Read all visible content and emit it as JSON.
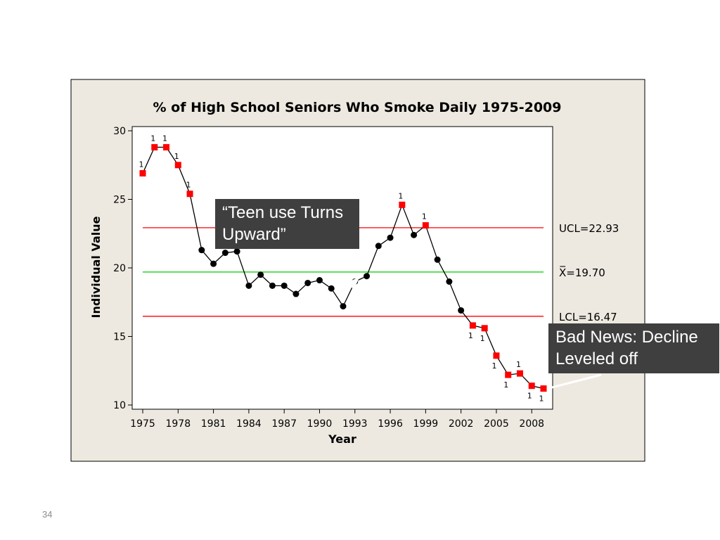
{
  "chart_data": {
    "type": "line",
    "chart_kind": "individuals control chart",
    "title": "% of High School Seniors Who Smoke Daily 1975-2009",
    "xlabel": "Year",
    "ylabel": "Individual Value",
    "xlim": [
      1975,
      2009
    ],
    "ylim": [
      10,
      30
    ],
    "x_ticks": [
      "1975",
      "1978",
      "1981",
      "1984",
      "1987",
      "1990",
      "1993",
      "1996",
      "1999",
      "2002",
      "2005",
      "2008"
    ],
    "y_ticks": [
      "10",
      "15",
      "20",
      "25",
      "30"
    ],
    "grid": false,
    "series": [
      {
        "x": [
          1975,
          1976,
          1977,
          1978,
          1979,
          1980,
          1981,
          1982,
          1983,
          1984,
          1985,
          1986,
          1987,
          1988,
          1989,
          1990,
          1991,
          1992,
          1993,
          1994,
          1995,
          1996,
          1997,
          1998,
          1999,
          2000,
          2001,
          2002,
          2003,
          2004,
          2005,
          2006,
          2007,
          2008,
          2009
        ],
        "values": [
          26.9,
          28.8,
          28.8,
          27.5,
          25.4,
          21.3,
          20.3,
          21.1,
          21.2,
          18.7,
          19.5,
          18.7,
          18.7,
          18.1,
          18.9,
          19.1,
          18.5,
          17.2,
          19.0,
          19.4,
          21.6,
          22.2,
          24.6,
          22.4,
          23.1,
          20.6,
          19.0,
          16.9,
          15.8,
          15.6,
          13.6,
          12.2,
          12.3,
          11.4,
          11.2
        ],
        "flagged": [
          true,
          true,
          true,
          true,
          true,
          false,
          false,
          false,
          false,
          false,
          false,
          false,
          false,
          false,
          false,
          false,
          false,
          false,
          false,
          false,
          false,
          false,
          true,
          false,
          true,
          false,
          false,
          false,
          true,
          true,
          true,
          true,
          true,
          true,
          true
        ],
        "point_color": "#000000",
        "flag_color": "#ff0000"
      }
    ],
    "flag_label": "1",
    "control_lines": [
      {
        "label": "UCL=22.93",
        "value": 22.93,
        "color": "#ff0000"
      },
      {
        "label": "X̅=19.70",
        "value": 19.7,
        "color": "#00cc00"
      },
      {
        "label": "LCL=16.47",
        "value": 16.47,
        "color": "#ff0000"
      }
    ],
    "annotations": [
      {
        "text": "“Teen use Turns Upward”",
        "points_to_year": 1993
      },
      {
        "text": "Bad News: Decline Leveled off",
        "points_to_year": 2009
      }
    ]
  },
  "colors": {
    "panel_bg": "#ede9e0",
    "plot_bg": "#ffffff",
    "callout_bg": "#3f3f3f",
    "callout_text": "#ffffff"
  },
  "slide": {
    "number": "34"
  },
  "callouts": {
    "teen_line1": "“Teen use Turns",
    "teen_line2": "Upward”",
    "bad_line1": "Bad News: Decline",
    "bad_line2": "Leveled off"
  }
}
